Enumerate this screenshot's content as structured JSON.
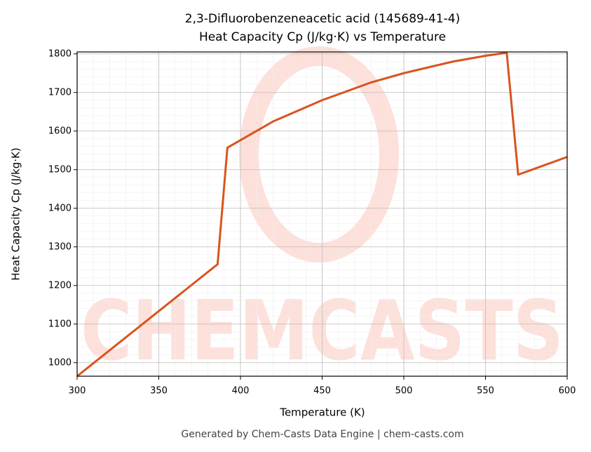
{
  "chart_data": {
    "type": "line",
    "title": "2,3-Difluorobenzeneacetic acid (145689-41-4)",
    "subtitle": "Heat Capacity Cp (J/kg·K) vs Temperature",
    "xlabel": "Temperature (K)",
    "ylabel": "Heat Capacity Cp (J/kg·K)",
    "footer": "Generated by Chem-Casts Data Engine | chem-casts.com",
    "watermark": "CHEMCASTS",
    "x": [
      300,
      386,
      392,
      420,
      450,
      480,
      500,
      530,
      550,
      563,
      570,
      600
    ],
    "series": [
      {
        "name": "Cp",
        "color": "#d9541e",
        "values": [
          965,
          1255,
          1557,
          1625,
          1680,
          1726,
          1750,
          1780,
          1795,
          1803,
          1487,
          1533
        ]
      }
    ],
    "xlim": [
      300,
      600
    ],
    "xticks": [
      300,
      350,
      400,
      450,
      500,
      550,
      600
    ],
    "ylim": [
      965,
      1805
    ],
    "yticks": [
      1000,
      1100,
      1200,
      1300,
      1400,
      1500,
      1600,
      1700,
      1800
    ],
    "grid": true
  }
}
